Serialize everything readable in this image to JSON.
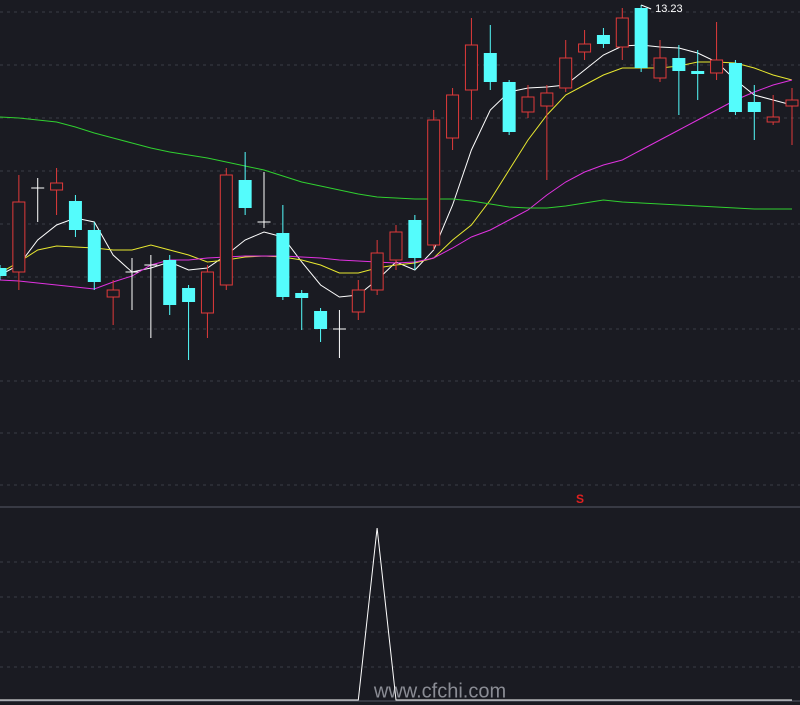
{
  "chart_data": {
    "type": "candlestick",
    "ylim": [
      8.23,
      13.28
    ],
    "up_color": "#e03a3a",
    "down_color": "#54fcfc",
    "flat_color": "#ffffff",
    "open": [
      10.6,
      10.56,
      11.4,
      11.38,
      11.27,
      10.98,
      10.31,
      10.56,
      10.63,
      10.68,
      10.4,
      10.15,
      10.43,
      11.48,
      11.06,
      10.95,
      10.35,
      10.17,
      9.99,
      10.16,
      10.38,
      10.68,
      11.08,
      10.83,
      11.9,
      12.38,
      12.75,
      12.46,
      12.16,
      12.22,
      12.4,
      12.76,
      12.93,
      12.81,
      13.2,
      12.5,
      12.7,
      12.57,
      12.55,
      12.65,
      12.26,
      12.06,
      12.22
    ],
    "high": [
      10.63,
      11.53,
      11.5,
      11.6,
      11.33,
      11.06,
      10.48,
      10.7,
      10.73,
      10.73,
      10.43,
      10.63,
      11.6,
      11.76,
      11.56,
      11.23,
      10.38,
      10.2,
      10.18,
      10.48,
      10.88,
      11.03,
      11.13,
      12.18,
      12.4,
      13.1,
      13.03,
      12.48,
      12.43,
      12.43,
      12.88,
      12.98,
      13.0,
      13.2,
      13.23,
      12.88,
      12.83,
      12.78,
      13.06,
      12.68,
      12.43,
      12.33,
      12.4
    ],
    "low": [
      10.48,
      10.38,
      11.06,
      11.13,
      10.91,
      10.38,
      10.03,
      10.18,
      9.9,
      10.13,
      9.68,
      9.9,
      10.38,
      11.13,
      11.0,
      10.28,
      9.98,
      9.86,
      9.7,
      10.08,
      10.33,
      10.58,
      10.58,
      10.78,
      11.78,
      12.08,
      12.38,
      11.93,
      12.1,
      11.48,
      12.36,
      12.68,
      12.8,
      12.68,
      12.56,
      12.46,
      12.13,
      12.28,
      12.48,
      12.13,
      11.88,
      12.03,
      11.83
    ],
    "close": [
      10.52,
      11.26,
      11.4,
      11.45,
      10.98,
      10.46,
      10.38,
      10.56,
      10.63,
      10.23,
      10.26,
      10.56,
      11.53,
      11.2,
      11.06,
      10.31,
      10.3,
      9.99,
      9.99,
      10.38,
      10.75,
      10.96,
      10.7,
      12.08,
      12.33,
      12.83,
      12.46,
      11.96,
      12.31,
      12.35,
      12.7,
      12.84,
      12.84,
      13.1,
      12.6,
      12.7,
      12.57,
      12.54,
      12.68,
      12.16,
      12.16,
      12.11,
      12.28
    ],
    "series": [
      {
        "color": "#ffffff",
        "values": [
          10.53,
          10.63,
          10.88,
          11.03,
          11.1,
          11.06,
          10.73,
          10.56,
          10.6,
          10.66,
          10.58,
          10.6,
          10.73,
          10.88,
          10.96,
          10.91,
          10.66,
          10.43,
          10.31,
          10.33,
          10.48,
          10.66,
          10.58,
          10.78,
          11.23,
          11.78,
          12.18,
          12.36,
          12.4,
          12.41,
          12.43,
          12.58,
          12.73,
          12.82,
          12.83,
          12.81,
          12.8,
          12.75,
          12.66,
          12.48,
          12.33,
          12.28,
          12.23
        ]
      },
      {
        "color": "#e8e830",
        "values": [
          10.55,
          10.66,
          10.78,
          10.82,
          10.81,
          10.8,
          10.78,
          10.78,
          10.83,
          10.78,
          10.73,
          10.66,
          10.68,
          10.71,
          10.72,
          10.71,
          10.68,
          10.63,
          10.55,
          10.55,
          10.6,
          10.63,
          10.65,
          10.7,
          10.88,
          11.03,
          11.28,
          11.58,
          11.88,
          12.13,
          12.33,
          12.43,
          12.53,
          12.6,
          12.6,
          12.6,
          12.62,
          12.66,
          12.66,
          12.65,
          12.6,
          12.53,
          12.48
        ]
      },
      {
        "color": "#e032e0",
        "values": [
          10.48,
          10.47,
          10.45,
          10.43,
          10.41,
          10.39,
          10.46,
          10.52,
          10.63,
          10.68,
          10.68,
          10.7,
          10.71,
          10.72,
          10.72,
          10.72,
          10.71,
          10.7,
          10.68,
          10.67,
          10.66,
          10.65,
          10.66,
          10.7,
          10.8,
          10.91,
          10.98,
          11.08,
          11.18,
          11.33,
          11.46,
          11.56,
          11.63,
          11.68,
          11.78,
          11.88,
          11.98,
          12.08,
          12.18,
          12.28,
          12.36,
          12.43,
          12.48
        ]
      },
      {
        "color": "#30d030",
        "values": [
          12.11,
          12.1,
          12.08,
          12.06,
          12.01,
          11.95,
          11.9,
          11.85,
          11.8,
          11.76,
          11.73,
          11.7,
          11.66,
          11.62,
          11.58,
          11.52,
          11.46,
          11.42,
          11.38,
          11.34,
          11.31,
          11.3,
          11.29,
          11.29,
          11.29,
          11.27,
          11.24,
          11.21,
          11.2,
          11.2,
          11.22,
          11.25,
          11.28,
          11.26,
          11.25,
          11.24,
          11.23,
          11.22,
          11.21,
          11.2,
          11.19,
          11.19,
          11.19
        ]
      }
    ],
    "signal": {
      "label": "S",
      "color": "#e02020"
    },
    "indicator": {
      "color": "#ffffff",
      "ylim": [
        0,
        1
      ],
      "values": [
        0,
        0,
        0,
        0,
        0,
        0,
        0,
        0,
        0,
        0,
        0,
        0,
        0,
        0,
        0,
        0,
        0,
        0,
        0,
        0,
        1,
        0,
        0,
        0,
        0,
        0,
        0,
        0,
        0,
        0,
        0,
        0,
        0,
        0,
        0,
        0,
        0,
        0,
        0,
        0,
        0,
        0,
        0
      ]
    },
    "watermark": "www.cfchi.com"
  }
}
